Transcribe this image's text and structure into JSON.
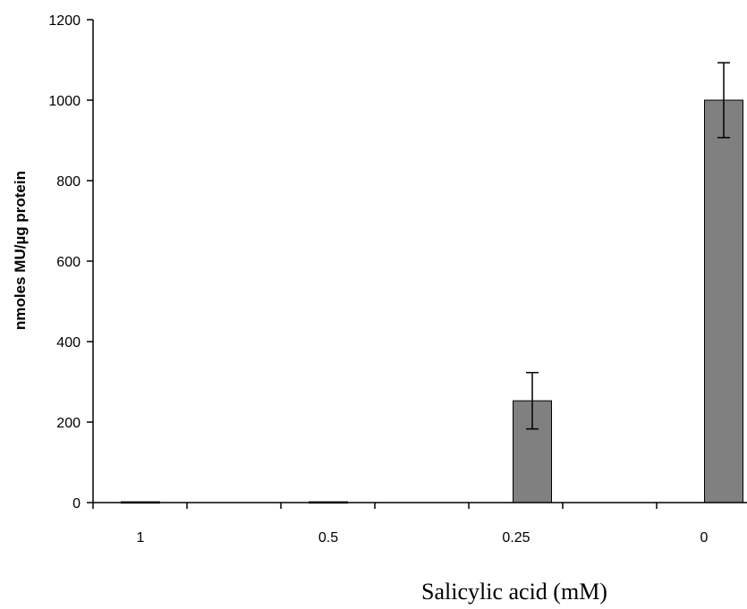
{
  "chart_data": {
    "type": "bar",
    "categories": [
      "1",
      "0.5",
      "0.25",
      "0"
    ],
    "values": [
      2,
      2,
      253,
      1000
    ],
    "errors": [
      0,
      0,
      70,
      93
    ],
    "xlabel": "Salicylic acid (mM)",
    "ylabel": "nmoles MU/µg protein",
    "ylim": [
      0,
      1200
    ],
    "yticks": [
      "0",
      "200",
      "400",
      "600",
      "800",
      "1000",
      "1200"
    ],
    "grid": false,
    "bar_color": "#808080"
  }
}
